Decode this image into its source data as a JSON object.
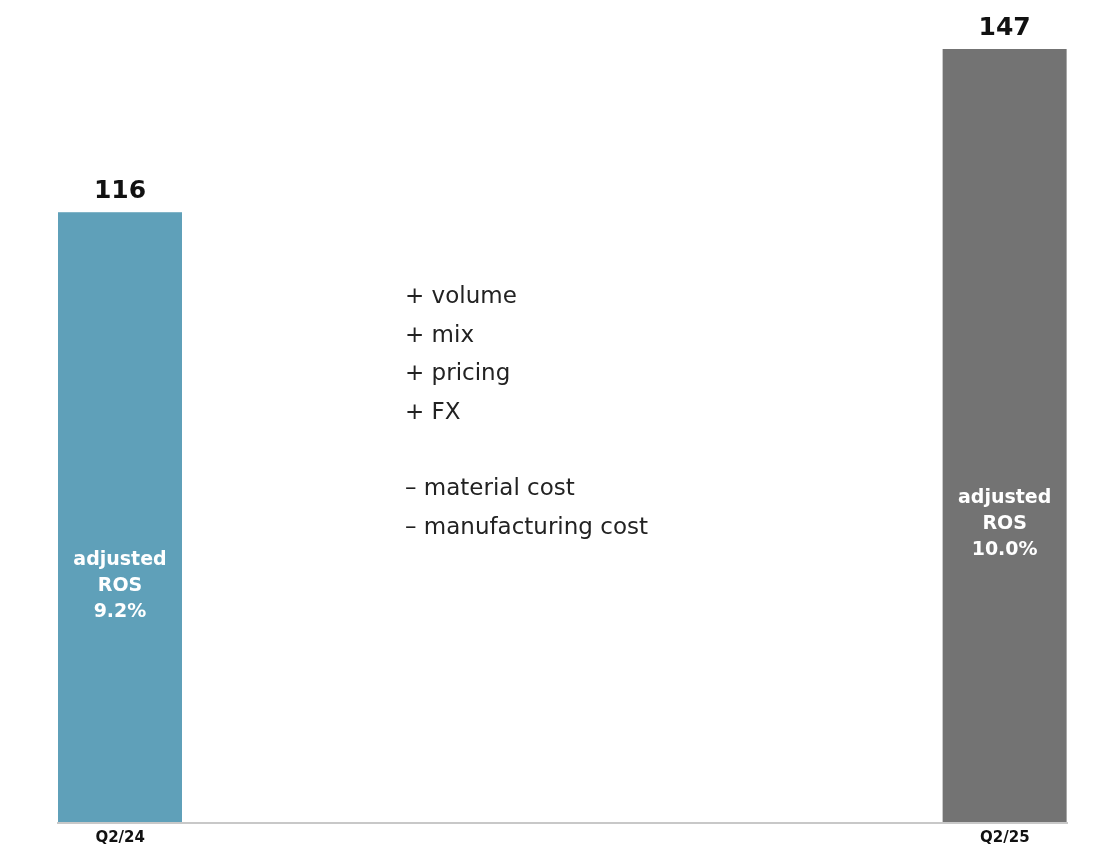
{
  "chart_data": {
    "type": "bar",
    "categories": [
      "Q2/24",
      null,
      null,
      null,
      null,
      null,
      null,
      "Q2/25"
    ],
    "values": [
      116,
      null,
      null,
      null,
      null,
      null,
      null,
      147
    ],
    "colors": [
      "#5fa0b9",
      null,
      null,
      null,
      null,
      null,
      null,
      "#737373"
    ],
    "data_labels": true,
    "annotations": [
      "adjusted ROS 9.2%",
      "adjusted ROS 10.0%",
      "+ volume",
      "+ mix",
      "+ pricing",
      "+ FX",
      "– material cost",
      "– manufacturing cost"
    ]
  }
}
